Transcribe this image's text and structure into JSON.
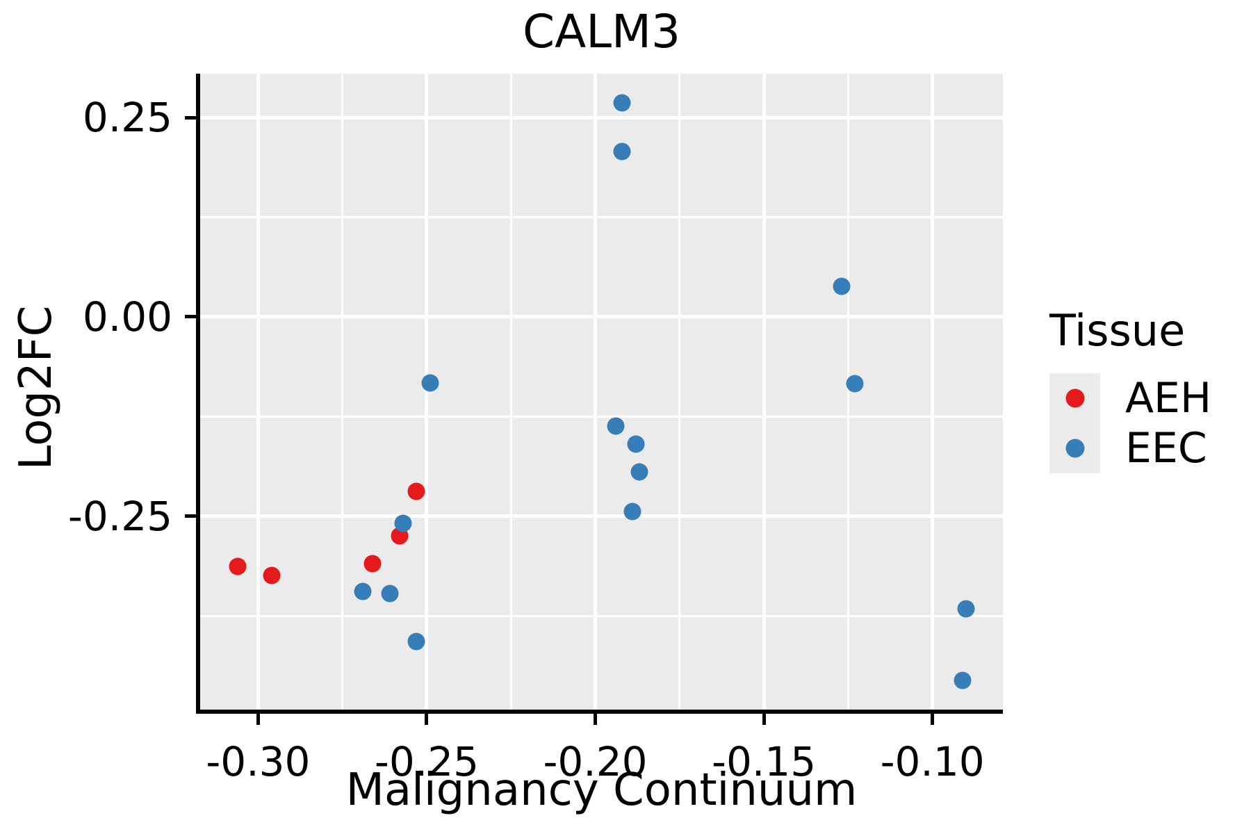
{
  "chart_data": {
    "type": "scatter",
    "title": "CALM3",
    "xlabel": "Malignancy Continuum",
    "ylabel": "Log2FC",
    "xlim": [
      -0.3172,
      -0.0791
    ],
    "ylim": [
      -0.4922,
      0.3049
    ],
    "grid": "on",
    "panel_bg": "#EBEBEB",
    "grid_color": "#FFFFFF",
    "x_ticks": {
      "values": [
        -0.3,
        -0.25,
        -0.2,
        -0.15,
        -0.1
      ],
      "labels": [
        "-0.30",
        "-0.25",
        "-0.20",
        "-0.15",
        "-0.10"
      ],
      "minor": [
        -0.275,
        -0.225,
        -0.175,
        -0.125
      ]
    },
    "y_ticks": {
      "values": [
        0.25,
        0.0,
        -0.25
      ],
      "labels": [
        "0.25",
        "0.00",
        "-0.25"
      ],
      "minor": [
        0.125,
        -0.125,
        -0.375
      ]
    },
    "legend": {
      "title": "Tissue",
      "position": "right",
      "entries": [
        {
          "label": "AEH",
          "color": "#E41A1C"
        },
        {
          "label": "EEC",
          "color": "#377EB8"
        }
      ]
    },
    "series": [
      {
        "name": "AEH",
        "color": "#E41A1C",
        "points": [
          {
            "x": -0.306,
            "y": -0.313
          },
          {
            "x": -0.296,
            "y": -0.324
          },
          {
            "x": -0.266,
            "y": -0.309
          },
          {
            "x": -0.258,
            "y": -0.274
          },
          {
            "x": -0.253,
            "y": -0.219
          }
        ]
      },
      {
        "name": "EEC",
        "color": "#377EB8",
        "points": [
          {
            "x": -0.269,
            "y": -0.344
          },
          {
            "x": -0.261,
            "y": -0.347
          },
          {
            "x": -0.257,
            "y": -0.259
          },
          {
            "x": -0.253,
            "y": -0.407
          },
          {
            "x": -0.249,
            "y": -0.083
          },
          {
            "x": -0.194,
            "y": -0.137
          },
          {
            "x": -0.192,
            "y": 0.268
          },
          {
            "x": -0.192,
            "y": 0.207
          },
          {
            "x": -0.188,
            "y": -0.159
          },
          {
            "x": -0.187,
            "y": -0.194
          },
          {
            "x": -0.189,
            "y": -0.244
          },
          {
            "x": -0.127,
            "y": 0.038
          },
          {
            "x": -0.123,
            "y": -0.084
          },
          {
            "x": -0.09,
            "y": -0.366
          },
          {
            "x": -0.091,
            "y": -0.456
          }
        ]
      }
    ]
  }
}
